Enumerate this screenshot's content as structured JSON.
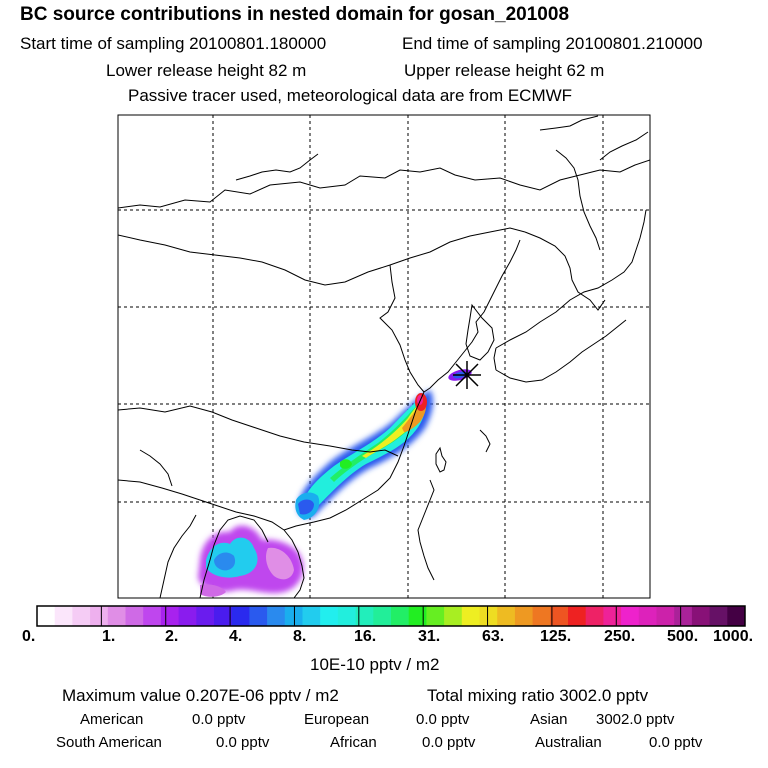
{
  "header": {
    "title": "BC  source contributions in nested domain for gosan_201008",
    "start_label": "Start time of sampling 20100801.180000",
    "end_label": "End time of sampling 20100801.210000",
    "lower_label": "Lower release height   82 m",
    "upper_label": "Upper release height   62 m",
    "tracer_note": "Passive tracer used, meteorological data are from ECMWF"
  },
  "colorbar": {
    "unit_label": "10E-10 pptv / m2",
    "tick_labels": [
      "0.",
      "1.",
      "2.",
      "4.",
      "8.",
      "16.",
      "31.",
      "63.",
      "125.",
      "250.",
      "500.",
      "1000."
    ],
    "colors": [
      "#ffffff",
      "#fbe6fb",
      "#f5ccf5",
      "#eeb0ee",
      "#e08ee6",
      "#cf6ae6",
      "#bf46ee",
      "#a822ee",
      "#8a1cee",
      "#6a1cee",
      "#4a1cee",
      "#2a2aee",
      "#2a5aee",
      "#2a8aee",
      "#1aaeee",
      "#22ccee",
      "#22eeee",
      "#22eedd",
      "#22eebb",
      "#22ee99",
      "#22ee66",
      "#22ee22",
      "#66ee22",
      "#a8ee22",
      "#eeee22",
      "#eedd22",
      "#eebb22",
      "#ee9922",
      "#ee7722",
      "#ee5522",
      "#ee2222",
      "#ee2266",
      "#ee2299",
      "#ee22cc",
      "#dd22bb",
      "#cc22aa",
      "#aa2299",
      "#881177",
      "#661166",
      "#440044"
    ]
  },
  "stats": {
    "max_value": "Maximum value  0.207E-06 pptv / m2",
    "total_mixing": "Total mixing ratio     3002.0 pptv",
    "american_label": "American",
    "american_value": "0.0 pptv",
    "european_label": "European",
    "european_value": "0.0 pptv",
    "asian_label": "Asian",
    "asian_value": "3002.0 pptv",
    "south_american_label": "South American",
    "south_american_value": "0.0 pptv",
    "african_label": "African",
    "african_value": "0.0 pptv",
    "australian_label": "Australian",
    "australian_value": "0.0 pptv"
  }
}
